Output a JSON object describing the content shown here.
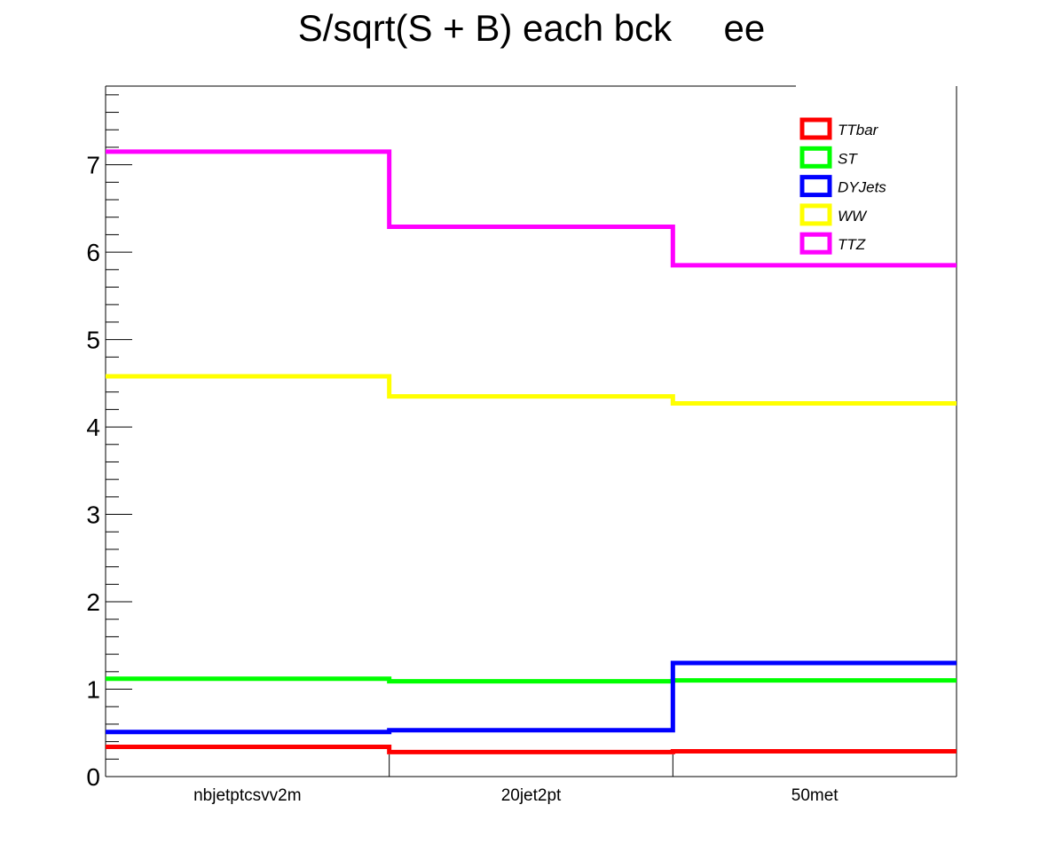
{
  "chart_data": {
    "type": "line",
    "step": true,
    "title": "S/sqrt(S + B) each bck     ee",
    "xlabel": "",
    "ylabel": "",
    "categories": [
      "nbjetptcsvv2m",
      "20jet2pt",
      "50met"
    ],
    "ylim": [
      0,
      7.9
    ],
    "y_major_ticks": [
      0,
      1,
      2,
      3,
      4,
      5,
      6,
      7
    ],
    "grid": false,
    "legend_position": "top-right",
    "series": [
      {
        "name": "TTbar",
        "color": "#ff0000",
        "values": [
          0.34,
          0.28,
          0.29
        ]
      },
      {
        "name": "ST",
        "color": "#00ff00",
        "values": [
          1.12,
          1.09,
          1.1
        ]
      },
      {
        "name": "DYJets",
        "color": "#0000ff",
        "values": [
          0.51,
          0.53,
          1.3
        ]
      },
      {
        "name": "WW",
        "color": "#ffff00",
        "values": [
          4.58,
          4.35,
          4.27
        ]
      },
      {
        "name": "TTZ",
        "color": "#ff00ff",
        "values": [
          7.15,
          6.29,
          5.85
        ]
      }
    ]
  }
}
